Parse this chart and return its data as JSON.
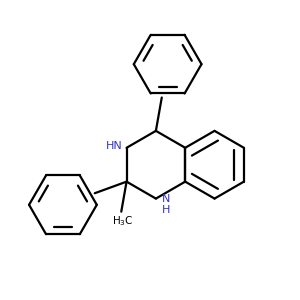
{
  "background_color": "#ffffff",
  "bond_color": "#000000",
  "nitrogen_color": "#3333cc",
  "line_width": 1.6,
  "figsize": [
    3.0,
    3.0
  ],
  "dpi": 100,
  "xlim": [
    0,
    10
  ],
  "ylim": [
    0,
    10
  ]
}
